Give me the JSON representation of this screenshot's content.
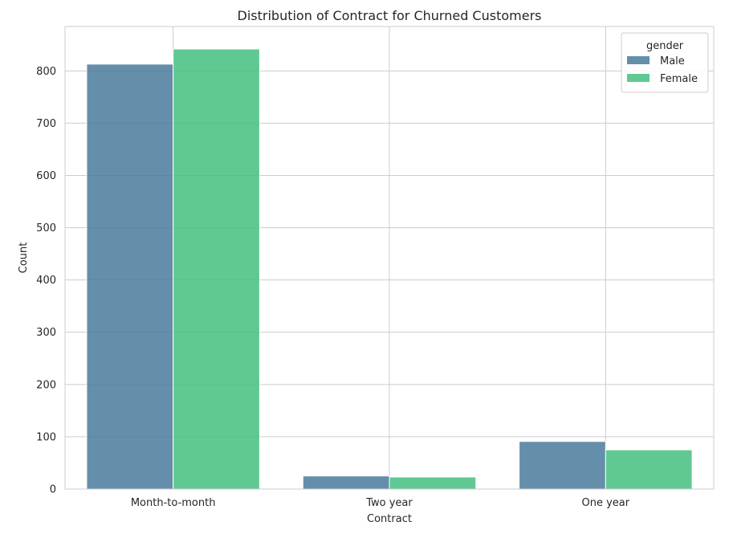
{
  "chart_data": {
    "type": "bar",
    "title": "Distribution of Contract for Churned Customers",
    "xlabel": "Contract",
    "ylabel": "Count",
    "categories": [
      "Month-to-month",
      "Two year",
      "One year"
    ],
    "series": [
      {
        "name": "Male",
        "values": [
          813,
          25,
          91
        ],
        "color": "#4a7a9c"
      },
      {
        "name": "Female",
        "values": [
          842,
          23,
          75
        ],
        "color": "#44c080"
      }
    ],
    "ylim": [
      0,
      885
    ],
    "yticks": [
      0,
      100,
      200,
      300,
      400,
      500,
      600,
      700,
      800
    ],
    "grid": true,
    "legend": {
      "title": "gender",
      "placement": "top-right"
    },
    "bar_opacity": 0.85
  }
}
